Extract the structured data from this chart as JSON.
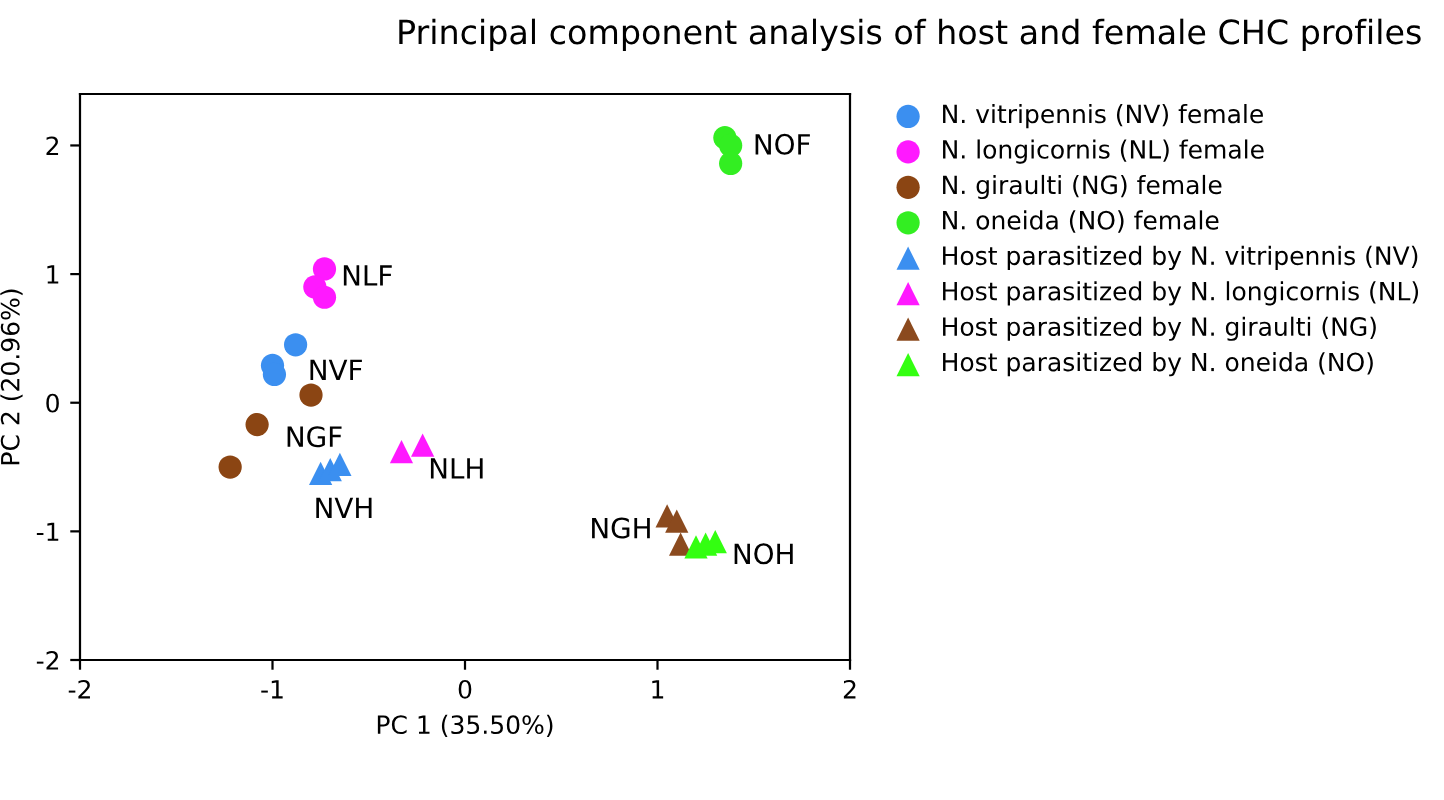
{
  "chart_data": {
    "type": "scatter",
    "title": "Principal component analysis of host and female CHC profiles",
    "xlabel": "PC 1 (35.50%)",
    "ylabel": "PC 2 (20.96%)",
    "xlim": [
      -2,
      2
    ],
    "ylim": [
      -2,
      2.4
    ],
    "xticks": [
      -2,
      -1,
      0,
      1,
      2
    ],
    "yticks": [
      -2,
      -1,
      0,
      1,
      2
    ],
    "grid": false,
    "legend": "right",
    "series": [
      {
        "name": "N. vitripennis (NV) female",
        "color": "#3b8ff0",
        "marker": "circle",
        "x": [
          -0.88,
          -1.0,
          -0.99
        ],
        "values": [
          0.45,
          0.29,
          0.22
        ]
      },
      {
        "name": "N. longicornis (NL) female",
        "color": "#ff19ff",
        "marker": "circle",
        "x": [
          -0.73,
          -0.78,
          -0.73
        ],
        "values": [
          1.04,
          0.9,
          0.82
        ]
      },
      {
        "name": "N. giraulti (NG) female",
        "color": "#8b4513",
        "marker": "circle",
        "x": [
          -0.8,
          -1.08,
          -1.22
        ],
        "values": [
          0.06,
          -0.17,
          -0.5
        ]
      },
      {
        "name": "N. oneida (NO) female",
        "color": "#33ee22",
        "marker": "circle",
        "x": [
          1.35,
          1.38,
          1.38
        ],
        "values": [
          2.06,
          2.0,
          1.86
        ]
      },
      {
        "name": "Host parasitized by N. vitripennis (NV)",
        "color": "#3b8ff0",
        "marker": "triangle",
        "x": [
          -0.75,
          -0.7,
          -0.65
        ],
        "values": [
          -0.55,
          -0.52,
          -0.48
        ]
      },
      {
        "name": "Host parasitized by N. longicornis (NL)",
        "color": "#ff19ff",
        "marker": "triangle",
        "x": [
          -0.33,
          -0.22
        ],
        "values": [
          -0.38,
          -0.33
        ]
      },
      {
        "name": "Host parasitized by N. giraulti (NG)",
        "color": "#8b4a1e",
        "marker": "triangle",
        "x": [
          1.05,
          1.1,
          1.12
        ],
        "values": [
          -0.88,
          -0.92,
          -1.1
        ]
      },
      {
        "name": "Host parasitized by N. oneida (NO)",
        "color": "#33ff11",
        "marker": "triangle",
        "x": [
          1.2,
          1.25,
          1.3
        ],
        "values": [
          -1.12,
          -1.1,
          -1.08
        ]
      }
    ],
    "annotations": [
      {
        "text": "NLF",
        "x": -0.73,
        "y": 1.04
      },
      {
        "text": "NVF",
        "x": -0.99,
        "y": 0.22
      },
      {
        "text": "NGF",
        "x": -1.08,
        "y": -0.17
      },
      {
        "text": "NVH",
        "x": -0.7,
        "y": -0.55
      },
      {
        "text": "NLH",
        "x": -0.22,
        "y": -0.33
      },
      {
        "text": "NOF",
        "x": 1.38,
        "y": 2.06
      },
      {
        "text": "NGH",
        "x": 1.05,
        "y": -0.88
      },
      {
        "text": "NOH",
        "x": 1.3,
        "y": -1.08
      }
    ]
  }
}
